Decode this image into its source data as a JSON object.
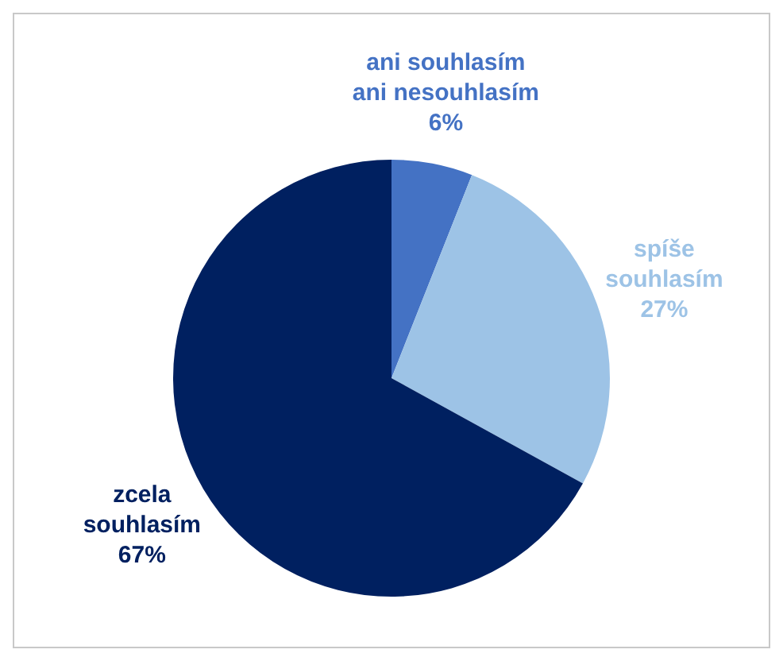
{
  "chart_data": {
    "type": "pie",
    "categories": [
      "ani souhlasím ani nesouhlasím",
      "spíše souhlasím",
      "zcela souhlasím"
    ],
    "values": [
      6,
      27,
      67
    ],
    "colors": [
      "#4472c4",
      "#9dc3e6",
      "#002060"
    ],
    "value_labels": [
      "6%",
      "27%",
      "67%"
    ],
    "legend": false
  }
}
